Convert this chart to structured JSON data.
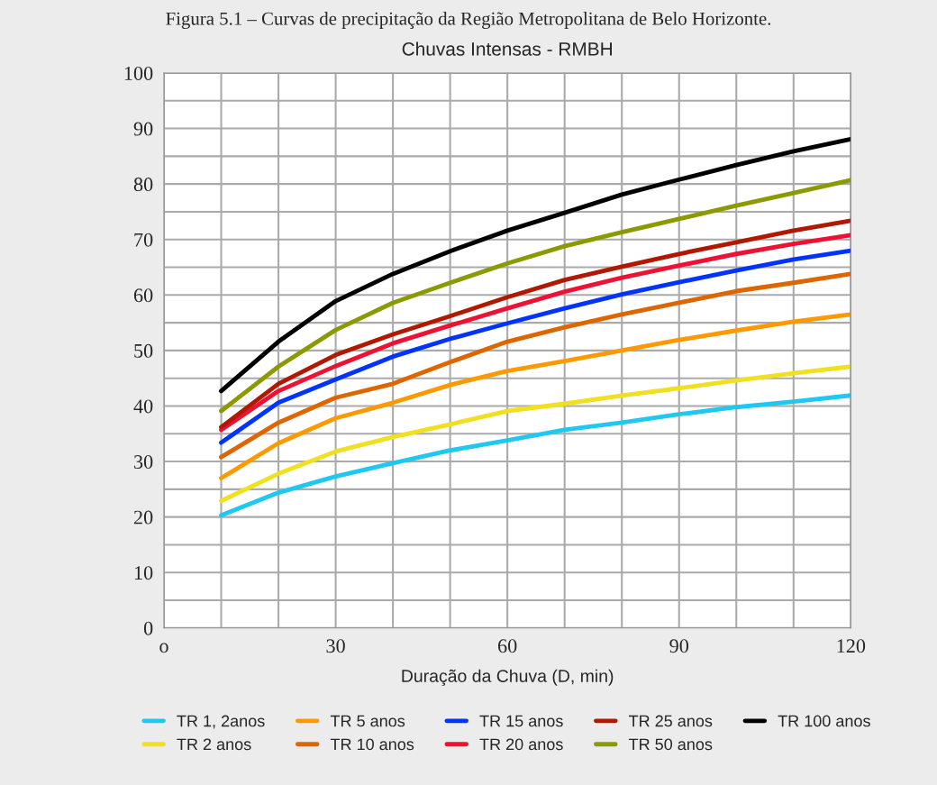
{
  "chart_data": {
    "type": "line",
    "title": "Chuvas Intensas - RMBH",
    "xlabel": "Duração da Chuva (D, min)",
    "annotations": [
      "Figura 5.1 – Curvas de precipitação da Região Metropolitana de Belo Horizonte."
    ],
    "x": [
      10,
      20,
      30,
      40,
      50,
      60,
      70,
      80,
      90,
      100,
      110,
      120
    ],
    "series": [
      {
        "name": "TR 1, 2anos",
        "color": "#1ec8f0",
        "values": [
          20.3,
          24.4,
          27.3,
          29.7,
          32.0,
          33.8,
          35.7,
          37.0,
          38.5,
          39.8,
          40.8,
          41.9
        ]
      },
      {
        "name": "TR 2 anos",
        "color": "#f0e020",
        "values": [
          22.9,
          27.8,
          31.8,
          34.4,
          36.7,
          39.1,
          40.4,
          41.9,
          43.2,
          44.6,
          45.9,
          47.1
        ]
      },
      {
        "name": "TR 5 anos",
        "color": "#ff9900",
        "values": [
          27.0,
          33.3,
          37.8,
          40.6,
          43.8,
          46.3,
          48.1,
          50.0,
          51.9,
          53.6,
          55.2,
          56.5
        ]
      },
      {
        "name": "TR 10 anos",
        "color": "#dd6600",
        "values": [
          30.8,
          37.0,
          41.5,
          44.0,
          47.9,
          51.6,
          54.2,
          56.5,
          58.6,
          60.7,
          62.2,
          63.8
        ]
      },
      {
        "name": "TR 15 anos",
        "color": "#0033ff",
        "values": [
          33.4,
          40.6,
          44.8,
          48.9,
          52.1,
          54.9,
          57.6,
          60.1,
          62.3,
          64.4,
          66.4,
          68.0
        ]
      },
      {
        "name": "TR 20 anos",
        "color": "#ee1133",
        "values": [
          35.7,
          42.7,
          47.2,
          51.3,
          54.5,
          57.6,
          60.6,
          63.1,
          65.3,
          67.4,
          69.2,
          70.8
        ]
      },
      {
        "name": "TR 25 anos",
        "color": "#b01800",
        "values": [
          36.2,
          44.0,
          49.2,
          52.9,
          56.2,
          59.6,
          62.7,
          65.1,
          67.4,
          69.5,
          71.6,
          73.4
        ]
      },
      {
        "name": "TR 50 anos",
        "color": "#8a9a00",
        "values": [
          39.1,
          47.1,
          53.7,
          58.6,
          62.2,
          65.7,
          68.8,
          71.3,
          73.7,
          76.1,
          78.4,
          80.7
        ]
      },
      {
        "name": "TR 100 anos",
        "color": "#000000",
        "values": [
          42.7,
          51.6,
          58.9,
          63.8,
          67.9,
          71.6,
          74.8,
          78.1,
          80.8,
          83.4,
          85.9,
          88.1
        ]
      }
    ],
    "xlim": [
      0,
      120
    ],
    "xticks": [
      {
        "value": 0,
        "label": "o"
      },
      {
        "value": 10,
        "label": null
      },
      {
        "value": 20,
        "label": null
      },
      30,
      {
        "value": 40,
        "label": null
      },
      {
        "value": 50,
        "label": null
      },
      60,
      {
        "value": 70,
        "label": null
      },
      {
        "value": 80,
        "label": null
      },
      90,
      {
        "value": 100,
        "label": null
      },
      {
        "value": 110,
        "label": null
      },
      120
    ],
    "ylim": [
      0,
      100
    ],
    "yticks": [
      0,
      {
        "value": 5,
        "label": null
      },
      10,
      {
        "value": 15,
        "label": null
      },
      20,
      {
        "value": 25,
        "label": null
      },
      30,
      {
        "value": 35,
        "label": null
      },
      40,
      {
        "value": 45,
        "label": null
      },
      50,
      {
        "value": 55,
        "label": null
      },
      60,
      {
        "value": 65,
        "label": null
      },
      70,
      {
        "value": 75,
        "label": null
      },
      80,
      {
        "value": 85,
        "label": null
      },
      90,
      {
        "value": 95,
        "label": null
      },
      100
    ],
    "grid": true,
    "legend": "bottom",
    "marker": "none",
    "line_style": "solid"
  }
}
